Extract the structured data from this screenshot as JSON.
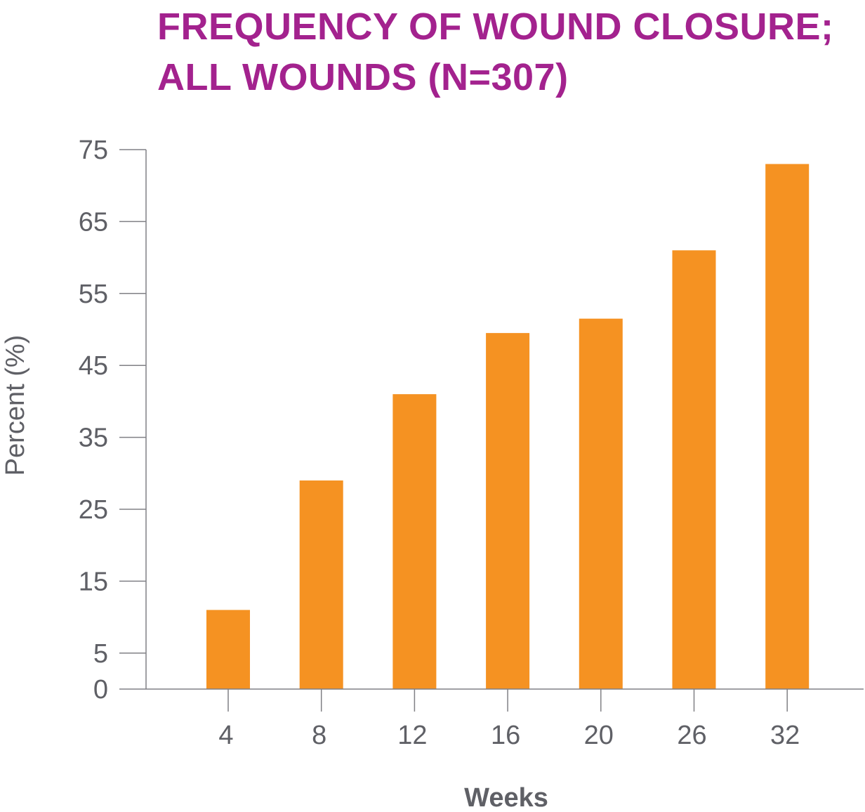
{
  "title_lines": [
    "FREQUENCY OF WOUND CLOSURE;",
    "ALL WOUNDS (N=307)"
  ],
  "colors": {
    "title": "#a3228e",
    "bar": "#f59222",
    "axis": "#808085",
    "text": "#5f6066"
  },
  "chart_data": {
    "type": "bar",
    "title": "FREQUENCY OF WOUND CLOSURE; ALL WOUNDS (N=307)",
    "categories": [
      "4",
      "8",
      "12",
      "16",
      "20",
      "26",
      "32"
    ],
    "values": [
      11,
      29,
      41,
      49.5,
      51.5,
      61,
      73
    ],
    "xlabel": "Weeks",
    "ylabel": "Percent (%)",
    "ylim": [
      0,
      75
    ],
    "yticks": [
      0,
      5,
      15,
      25,
      35,
      45,
      55,
      65,
      75
    ],
    "grid": false,
    "legend": "none"
  }
}
